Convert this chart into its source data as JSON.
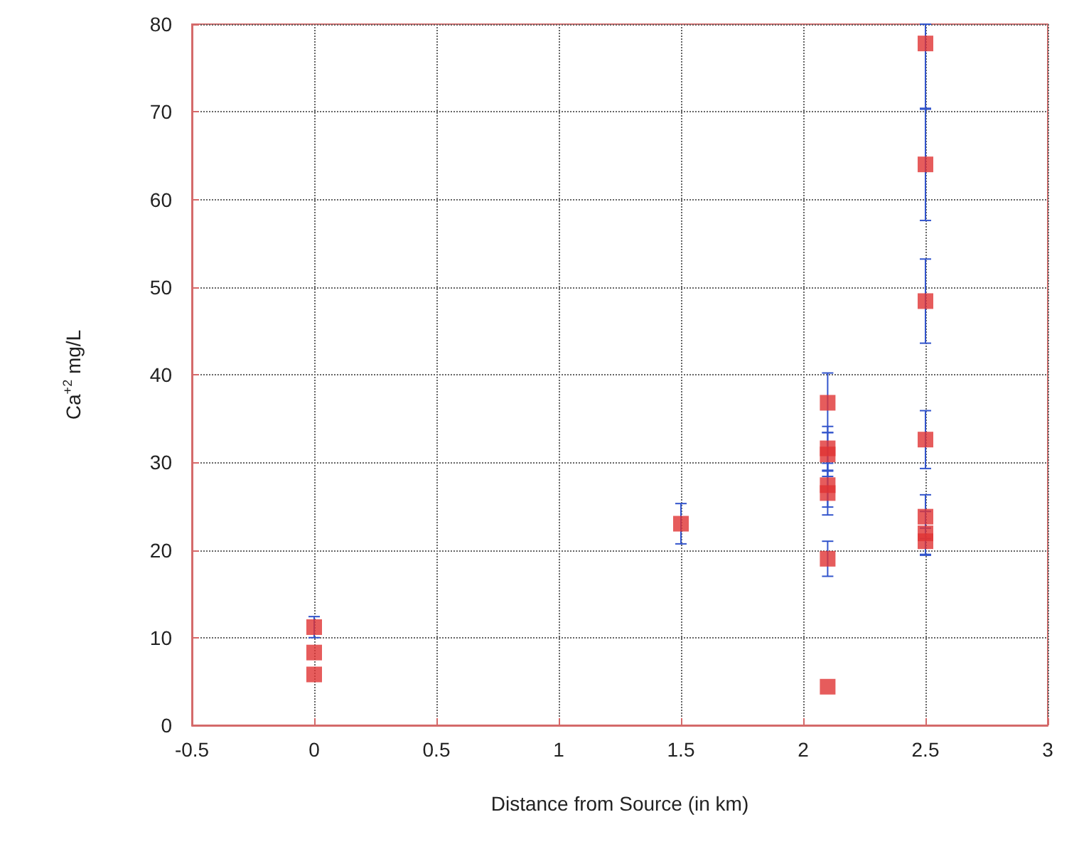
{
  "chart_data": {
    "type": "scatter",
    "xlabel": "Distance from Source (in km)",
    "ylabel": "Ca$^{+2}$ mg/L",
    "xlim": [
      -0.5,
      3
    ],
    "xticks": [
      -0.5,
      0,
      0.5,
      1,
      1.5,
      2,
      2.5,
      3
    ],
    "ylim": [
      0,
      80
    ],
    "yticks": [
      0,
      10,
      20,
      30,
      40,
      50,
      60,
      70,
      80
    ],
    "grid": true,
    "marker": "square",
    "series": [
      {
        "color": "#e03333",
        "x": [
          0,
          0,
          0,
          1.5,
          2.1,
          2.1,
          2.1,
          2.1,
          2.1,
          2.1,
          2.1,
          2.5,
          2.5,
          2.5,
          2.5,
          2.5,
          2.5,
          2.5
        ],
        "values": [
          11.2,
          8.3,
          5.8,
          23,
          36.8,
          31.6,
          30.9,
          27.4,
          26.5,
          19,
          4.4,
          77.8,
          64,
          48.4,
          32.6,
          23.8,
          21.9,
          21
        ],
        "errors": [
          1.2,
          null,
          null,
          2.3,
          3.4,
          2.5,
          2.5,
          2.5,
          2.5,
          2,
          null,
          [
            70.3,
            80
          ],
          6.4,
          4.8,
          3.3,
          2.5,
          2.5,
          1.5
        ]
      }
    ]
  }
}
